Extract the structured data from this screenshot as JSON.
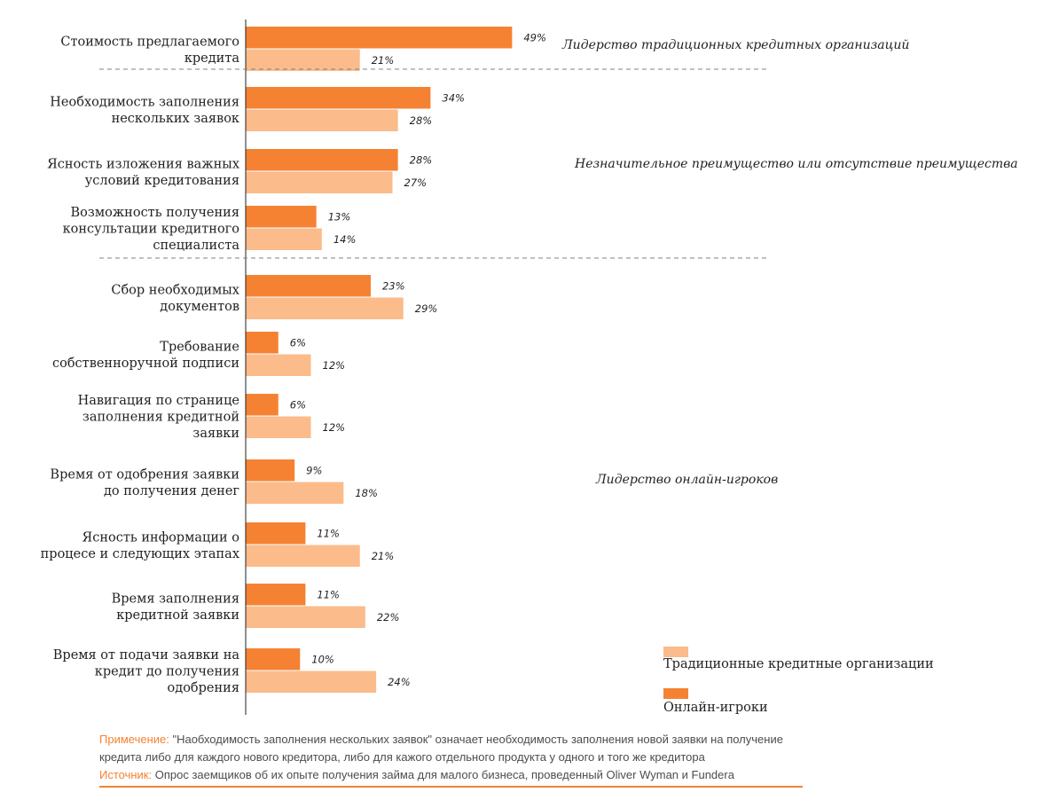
{
  "chart_data": {
    "type": "bar",
    "orientation": "horizontal",
    "categories": [
      [
        "Стоимость предлагаемого",
        "кредита"
      ],
      [
        "Необходимость заполнения",
        "нескольких заявок"
      ],
      [
        "Ясность изложения важных",
        "условий кредитования"
      ],
      [
        "Возможность получения",
        "консультации кредитного",
        "специалиста"
      ],
      [
        "Сбор необходимых",
        "документов"
      ],
      [
        "Требование",
        "собственноручной подписи"
      ],
      [
        "Навигация по странице",
        "заполнения кредитной",
        "заявки"
      ],
      [
        "Время от одобрения заявки",
        "до получения денег"
      ],
      [
        "Ясность информации о",
        "процесе и следующих этапах"
      ],
      [
        "Время заполнения",
        "кредитной заявки"
      ],
      [
        "Время от подачи заявки на",
        "кредит до получения",
        "одобрения"
      ]
    ],
    "series": [
      {
        "name": "Онлайн-игроки",
        "color": "#f58233",
        "values": [
          49,
          34,
          28,
          13,
          23,
          6,
          6,
          9,
          11,
          11,
          10
        ]
      },
      {
        "name": "Традиционные кредитные организации",
        "color": "#fbbb8a",
        "values": [
          21,
          28,
          27,
          14,
          29,
          12,
          12,
          18,
          21,
          22,
          24
        ]
      }
    ],
    "value_suffix": "%",
    "xlim": [
      0,
      50
    ],
    "groups": [
      {
        "label": "Лидерство традиционных кредитных организаций",
        "first": 0,
        "last": 0
      },
      {
        "label": "Незначительное преимущество или отсутствие преимущества",
        "first": 1,
        "last": 3
      },
      {
        "label": "Лидерство онлайн-игроков",
        "first": 4,
        "last": 10
      }
    ],
    "legend": [
      {
        "name": "Традиционные кредитные организации",
        "color": "#fbbb8a"
      },
      {
        "name": "Онлайн-игроки",
        "color": "#f58233"
      }
    ],
    "legend_position": "bottom-right"
  },
  "notes": {
    "note_lead": "Примечение:",
    "note_text": " \"Наобходимость заполнения нескольких заявок\" означает необходимость заполнения новой заявки на получение кредита либо для каждого нового кредитора, либо для кажого отдельного продукта у одного и того же кредитора",
    "source_lead": "Источник:",
    "source_text": " Опрос заемщиков об их опыте получения займа для малого бизнеса, проведенный Oliver Wyman и Fundera"
  }
}
